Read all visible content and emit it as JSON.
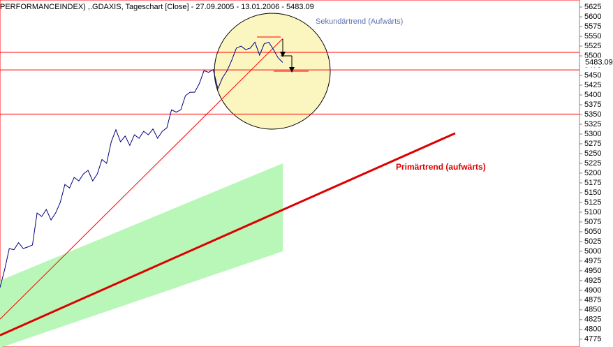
{
  "chart_data": {
    "type": "line",
    "title": "PERFORMANCEINDEX) ,.GDAXIS, Tageschart [Close] - 27.09.2005 - 13.01.2006 - 5483.09",
    "values": [
      4907,
      4953,
      5007,
      5004,
      5022,
      5007,
      5011,
      5016,
      5098,
      5089,
      5107,
      5080,
      5098,
      5125,
      5171,
      5162,
      5189,
      5180,
      5198,
      5207,
      5180,
      5198,
      5235,
      5225,
      5280,
      5311,
      5280,
      5295,
      5271,
      5298,
      5289,
      5307,
      5298,
      5313,
      5289,
      5307,
      5316,
      5362,
      5356,
      5362,
      5398,
      5407,
      5407,
      5429,
      5462,
      5458,
      5465,
      5416,
      5444,
      5462,
      5489,
      5520,
      5525,
      5516,
      5520,
      5535,
      5502,
      5531,
      5535,
      5516,
      5495,
      5483.09
    ],
    "color": "#000080",
    "ylim": [
      4755,
      5643
    ],
    "yticks": [
      4775,
      4800,
      4825,
      4850,
      4875,
      4900,
      4925,
      4950,
      4975,
      5000,
      5025,
      5050,
      5075,
      5100,
      5125,
      5150,
      5175,
      5200,
      5225,
      5250,
      5275,
      5300,
      5325,
      5350,
      5375,
      5400,
      5425,
      5450,
      5475,
      5500,
      5525,
      5550,
      5575,
      5600,
      5625
    ],
    "hlines": {
      "values": [
        5509,
        5464,
        5351
      ],
      "color": "#ff0000"
    },
    "band": {
      "x": [
        0,
        61
      ],
      "upper": [
        4925,
        5225
      ],
      "lower": [
        4753,
        5000
      ],
      "color": "#b8f7b8"
    },
    "trendlines": [
      {
        "label": "Sekundärtrend (Aufwärts)",
        "color": "#ff0000",
        "width": 1,
        "x": [
          0,
          61
        ],
        "y": [
          4826,
          5544
        ]
      },
      {
        "label": "Primärtrend (aufwärts)",
        "color": "#dd0000",
        "width": 3,
        "x": [
          0,
          98.2
        ],
        "y": [
          4785,
          5302
        ]
      }
    ]
  }
}
